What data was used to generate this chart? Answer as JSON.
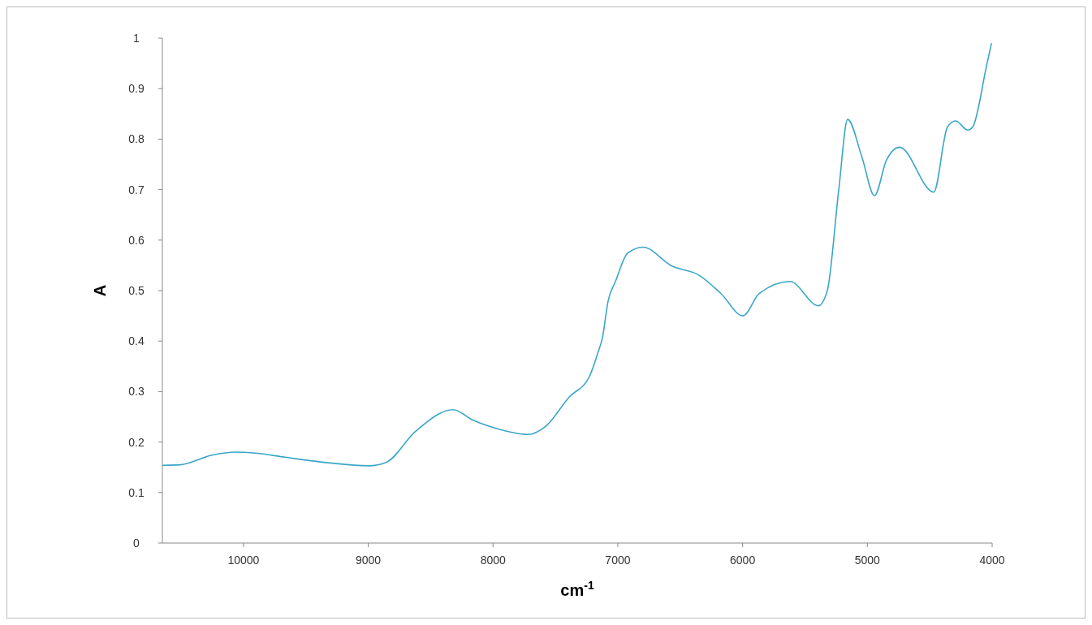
{
  "chart_data": {
    "type": "line",
    "xlabel": "cm$^{-1}$",
    "ylabel": "A",
    "xlim": [
      10650,
      4000
    ],
    "xticks": [
      10000,
      9000,
      8000,
      7000,
      6000,
      5000,
      4000
    ],
    "ylim": [
      0,
      1
    ],
    "yticks": [
      0,
      0.1,
      0.2,
      0.3,
      0.4,
      0.5,
      0.6,
      0.7,
      0.8,
      0.9,
      1
    ],
    "grid": false,
    "marker": "none",
    "line_style": "solid",
    "series": [
      {
        "color": "#3aa6c8",
        "x": [
          10650,
          10507,
          10253,
          10064,
          9902,
          9668,
          9323,
          8997,
          8854,
          8626,
          8320,
          8158,
          7976,
          7722,
          7579,
          7390,
          7227,
          7162,
          7123,
          7078,
          7019,
          6921,
          6798,
          6570,
          6346,
          6173,
          5997,
          5867,
          5620,
          5392,
          5321,
          5230,
          5158,
          5044,
          4943,
          4846,
          4742,
          4468,
          4358,
          4293,
          4195,
          4156,
          4045,
          4005
        ],
        "values": [
          0.154,
          0.155,
          0.174,
          0.18,
          0.178,
          0.17,
          0.159,
          0.153,
          0.16,
          0.22,
          0.264,
          0.243,
          0.227,
          0.215,
          0.231,
          0.289,
          0.33,
          0.375,
          0.407,
          0.479,
          0.518,
          0.574,
          0.586,
          0.549,
          0.53,
          0.494,
          0.45,
          0.494,
          0.518,
          0.47,
          0.5,
          0.698,
          0.839,
          0.765,
          0.688,
          0.759,
          0.784,
          0.695,
          0.824,
          0.836,
          0.818,
          0.824,
          0.945,
          0.99
        ]
      }
    ]
  }
}
